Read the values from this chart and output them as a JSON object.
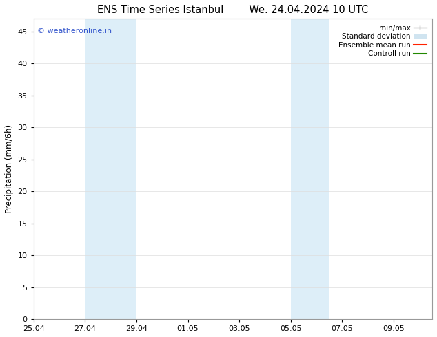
{
  "title_left": "ENS Time Series Istanbul",
  "title_right": "We. 24.04.2024 10 UTC",
  "ylabel": "Precipitation (mm/6h)",
  "ylim": [
    0,
    47
  ],
  "yticks": [
    0,
    5,
    10,
    15,
    20,
    25,
    30,
    35,
    40,
    45
  ],
  "xlim": [
    0,
    15.5
  ],
  "xtick_positions": [
    0,
    2,
    4,
    6,
    8,
    10,
    12,
    14
  ],
  "xtick_labels": [
    "25.04",
    "27.04",
    "29.04",
    "01.05",
    "03.05",
    "05.05",
    "07.05",
    "09.05"
  ],
  "shaded_regions": [
    {
      "xstart": 2.0,
      "xend": 4.0,
      "color": "#ddeef8"
    },
    {
      "xstart": 10.0,
      "xend": 11.5,
      "color": "#ddeef8"
    }
  ],
  "watermark": "© weatheronline.in",
  "watermark_color": "#3355cc",
  "background_color": "#ffffff",
  "plot_bg_color": "#ffffff",
  "spine_color": "#999999",
  "tick_color": "#000000",
  "grid_color": "#dddddd",
  "title_fontsize": 10.5,
  "ylabel_fontsize": 8.5,
  "tick_fontsize": 8,
  "watermark_fontsize": 8,
  "legend_fontsize": 7.5
}
